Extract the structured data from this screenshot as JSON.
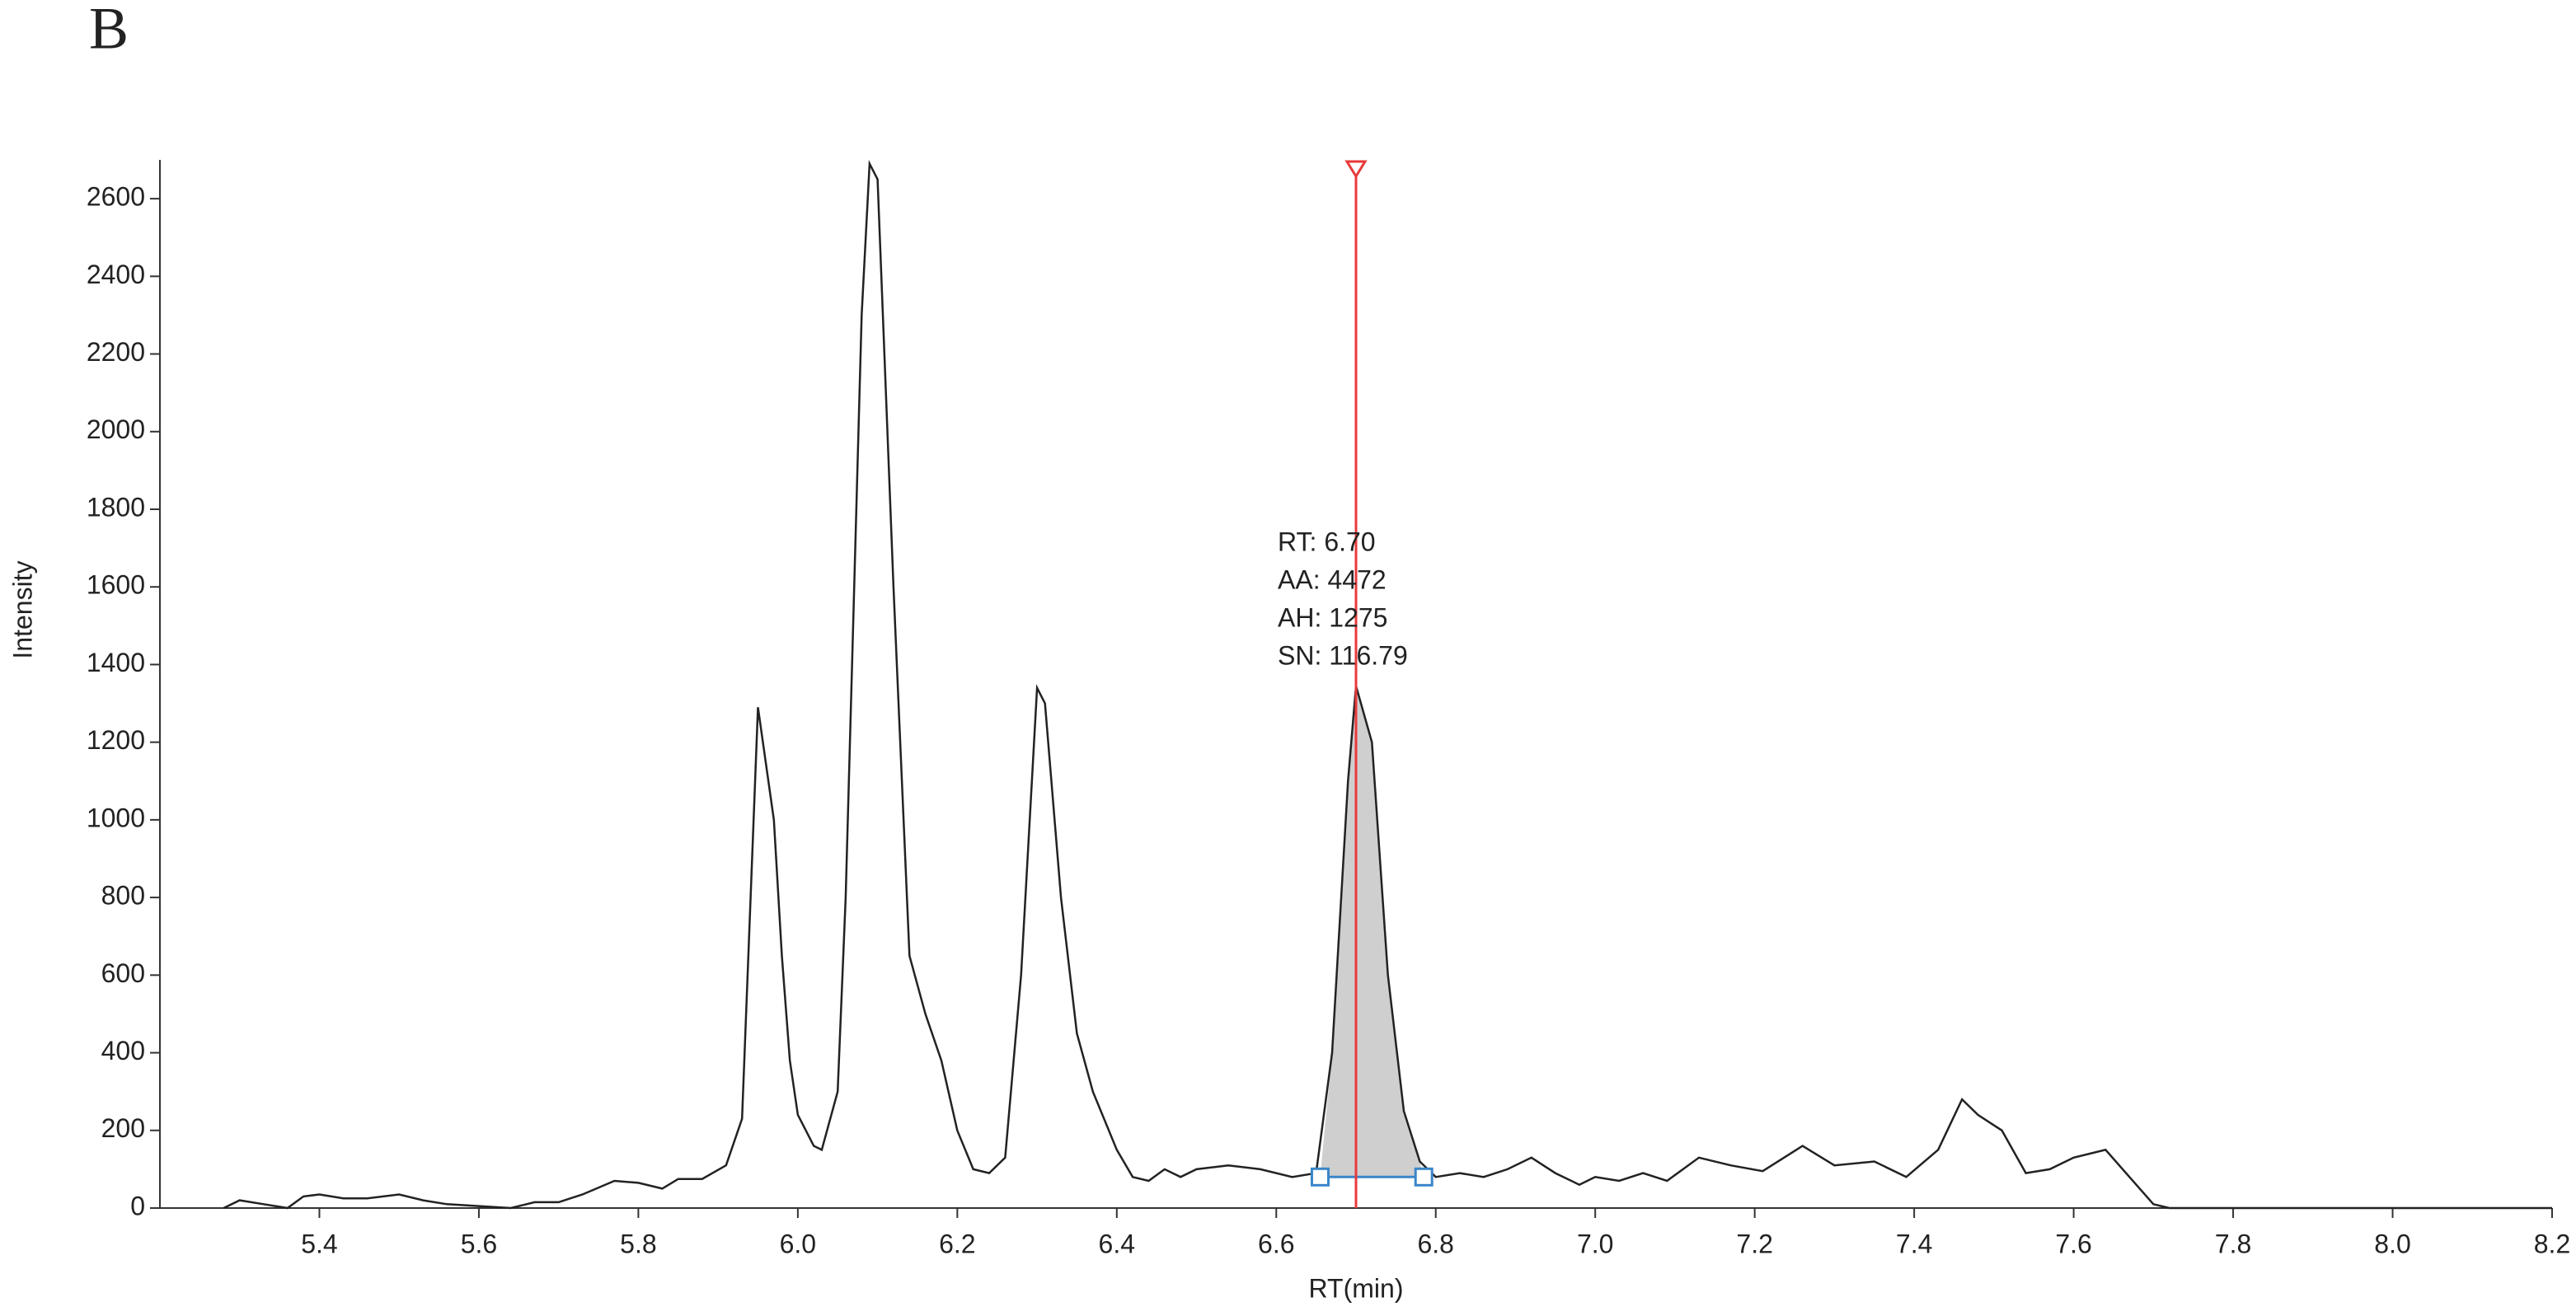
{
  "chart_data": {
    "type": "line",
    "panel_label": "B",
    "xlabel": "RT(min)",
    "ylabel": "Intensity",
    "color": "#222222",
    "x": [
      5.28,
      5.3,
      5.33,
      5.36,
      5.38,
      5.4,
      5.43,
      5.46,
      5.5,
      5.53,
      5.56,
      5.6,
      5.64,
      5.67,
      5.7,
      5.73,
      5.77,
      5.8,
      5.83,
      5.85,
      5.88,
      5.91,
      5.93,
      5.95,
      5.97,
      5.98,
      5.99,
      6.0,
      6.02,
      6.03,
      6.05,
      6.06,
      6.08,
      6.09,
      6.1,
      6.12,
      6.14,
      6.16,
      6.18,
      6.2,
      6.22,
      6.24,
      6.26,
      6.28,
      6.3,
      6.31,
      6.33,
      6.35,
      6.37,
      6.4,
      6.42,
      6.44,
      6.46,
      6.48,
      6.5,
      6.54,
      6.58,
      6.62,
      6.65,
      6.67,
      6.69,
      6.7,
      6.72,
      6.74,
      6.76,
      6.78,
      6.8,
      6.83,
      6.86,
      6.89,
      6.92,
      6.95,
      6.98,
      7.0,
      7.03,
      7.06,
      7.09,
      7.13,
      7.17,
      7.21,
      7.26,
      7.3,
      7.35,
      7.39,
      7.43,
      7.46,
      7.48,
      7.51,
      7.54,
      7.57,
      7.6,
      7.64,
      7.67,
      7.7,
      7.72,
      8.2
    ],
    "values": [
      0,
      20,
      10,
      0,
      30,
      35,
      25,
      25,
      35,
      20,
      10,
      5,
      0,
      15,
      15,
      35,
      70,
      65,
      50,
      75,
      75,
      110,
      230,
      1290,
      1000,
      650,
      380,
      240,
      160,
      150,
      300,
      800,
      2300,
      2690,
      2650,
      1600,
      650,
      500,
      380,
      200,
      100,
      90,
      130,
      600,
      1340,
      1300,
      800,
      450,
      300,
      150,
      80,
      70,
      100,
      80,
      100,
      110,
      100,
      80,
      90,
      400,
      1100,
      1345,
      1200,
      600,
      250,
      120,
      80,
      90,
      80,
      100,
      130,
      90,
      60,
      80,
      70,
      90,
      70,
      130,
      110,
      95,
      160,
      110,
      120,
      80,
      150,
      280,
      240,
      200,
      90,
      100,
      130,
      150,
      80,
      10,
      0,
      0
    ],
    "xlim": [
      5.2,
      8.2
    ],
    "ylim": [
      0,
      2700
    ],
    "xticks": [
      5.4,
      5.6,
      5.8,
      {
        "value": 6,
        "label": "6.0"
      },
      6.2,
      6.4,
      6.6,
      6.8,
      {
        "value": 7,
        "label": "7.0"
      },
      7.2,
      7.4,
      7.6,
      7.8,
      {
        "value": 8,
        "label": "8.0"
      },
      8.2
    ],
    "yticks": [
      0,
      200,
      400,
      600,
      800,
      1000,
      1200,
      1400,
      1600,
      1800,
      2000,
      2200,
      2400,
      2600
    ],
    "marker_x": 6.7,
    "marker_color": "#e83a3a",
    "peak": {
      "start": 6.655,
      "end": 6.785,
      "baseline": 80,
      "fill": "#cfcfcf",
      "edge_color": "#3a86c8"
    },
    "annotation": [
      "RT: 6.70",
      "AA: 4472",
      "AH: 1275",
      "SN: 116.79"
    ]
  }
}
